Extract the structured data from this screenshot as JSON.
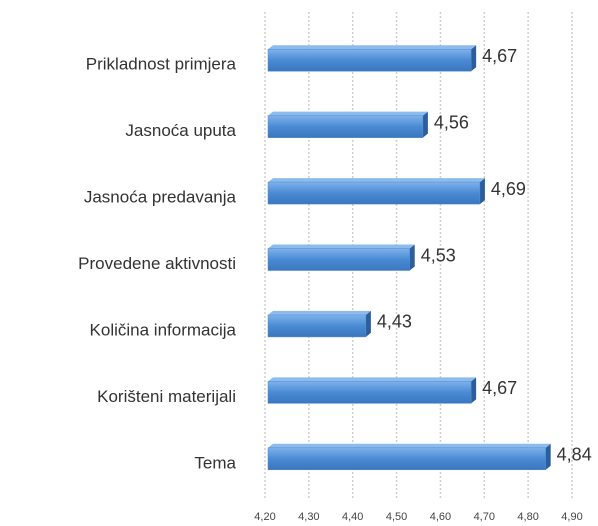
{
  "chart_data": {
    "type": "hbar",
    "categories": [
      "Prikladnost primjera",
      "Jasnoća uputa",
      "Jasnoća predavanja",
      "Provedene aktivnosti",
      "Količina informacija",
      "Korišteni materijali",
      "Tema"
    ],
    "values": [
      4.67,
      4.56,
      4.69,
      4.53,
      4.43,
      4.67,
      4.84
    ],
    "value_labels": [
      "4,67",
      "4,56",
      "4,69",
      "4,53",
      "4,43",
      "4,67",
      "4,84"
    ],
    "color": "#4a8bd4",
    "xlim": [
      4.2,
      4.9
    ],
    "xticks": [
      {
        "value": 4.2,
        "label": "4,20"
      },
      {
        "value": 4.3,
        "label": "4,30"
      },
      {
        "value": 4.4,
        "label": "4,40"
      },
      {
        "value": 4.5,
        "label": "4,50"
      },
      {
        "value": 4.6,
        "label": "4,60"
      },
      {
        "value": 4.7,
        "label": "4,70"
      },
      {
        "value": 4.8,
        "label": "4,80"
      },
      {
        "value": 4.9,
        "label": "4,90"
      }
    ],
    "grid": true
  }
}
